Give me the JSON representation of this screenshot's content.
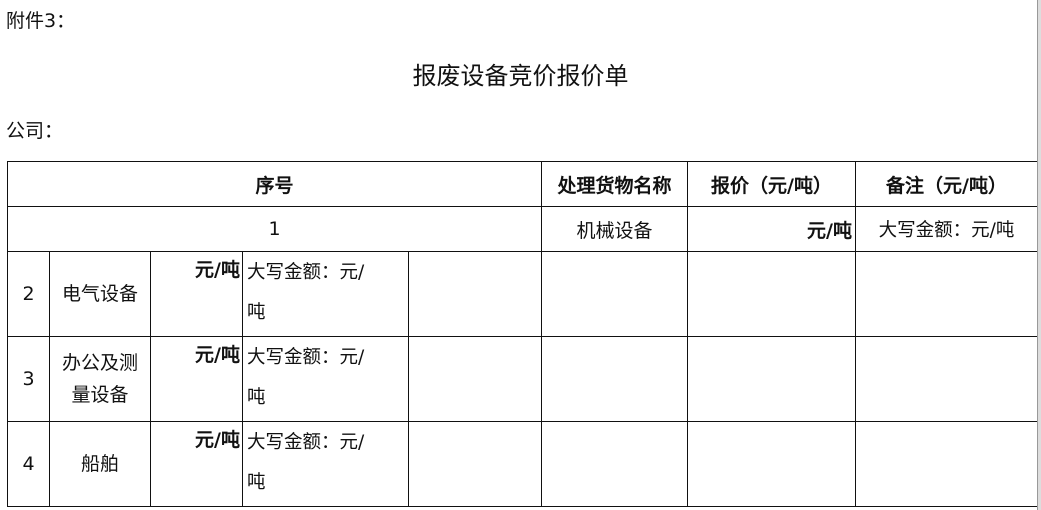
{
  "attachment_label": "附件3：",
  "title": "报废设备竞价报价单",
  "company_label": "公司：",
  "table": {
    "headers": [
      "序号",
      "处理货物名称",
      "报价（元/吨）",
      "备注（元/吨）"
    ],
    "row1": {
      "no": "1",
      "name": "机械设备",
      "price_unit": "元/吨",
      "remark": "大写金额：元/吨"
    },
    "rows": [
      {
        "no": "2",
        "name": "电气设备",
        "price_unit": "元/吨",
        "remark_a": "大写金额：元/",
        "remark_b": "吨"
      },
      {
        "no": "3",
        "name": "办公及测量设备",
        "price_unit": "元/吨",
        "remark_a": "大写金额：元/",
        "remark_b": "吨"
      },
      {
        "no": "4",
        "name": "船舶",
        "price_unit": "元/吨",
        "remark_a": "大写金额：元/",
        "remark_b": "吨"
      }
    ]
  }
}
